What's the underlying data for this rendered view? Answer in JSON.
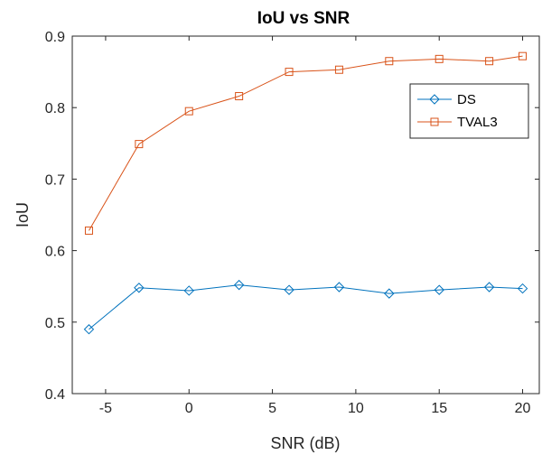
{
  "chart_data": {
    "type": "line",
    "title": "IoU vs SNR",
    "xlabel": "SNR (dB)",
    "ylabel": "IoU",
    "xlim": [
      -7,
      21
    ],
    "ylim": [
      0.4,
      0.9
    ],
    "xticks": [
      -5,
      0,
      5,
      10,
      15,
      20
    ],
    "yticks": [
      0.4,
      0.5,
      0.6,
      0.7,
      0.8,
      0.9
    ],
    "xtick_labels": [
      "-5",
      "0",
      "5",
      "10",
      "15",
      "20"
    ],
    "ytick_labels": [
      "0.4",
      "0.5",
      "0.6",
      "0.7",
      "0.8",
      "0.9"
    ],
    "grid": false,
    "legend_position": "top-right",
    "x": [
      -6,
      -3,
      0,
      3,
      6,
      9,
      12,
      15,
      18,
      20
    ],
    "series": [
      {
        "name": "DS",
        "color": "#0072BD",
        "marker": "diamond",
        "values": [
          0.49,
          0.548,
          0.544,
          0.552,
          0.545,
          0.549,
          0.54,
          0.545,
          0.549,
          0.547
        ]
      },
      {
        "name": "TVAL3",
        "color": "#D95319",
        "marker": "square",
        "values": [
          0.628,
          0.749,
          0.795,
          0.816,
          0.85,
          0.853,
          0.865,
          0.868,
          0.865,
          0.872
        ]
      }
    ]
  }
}
